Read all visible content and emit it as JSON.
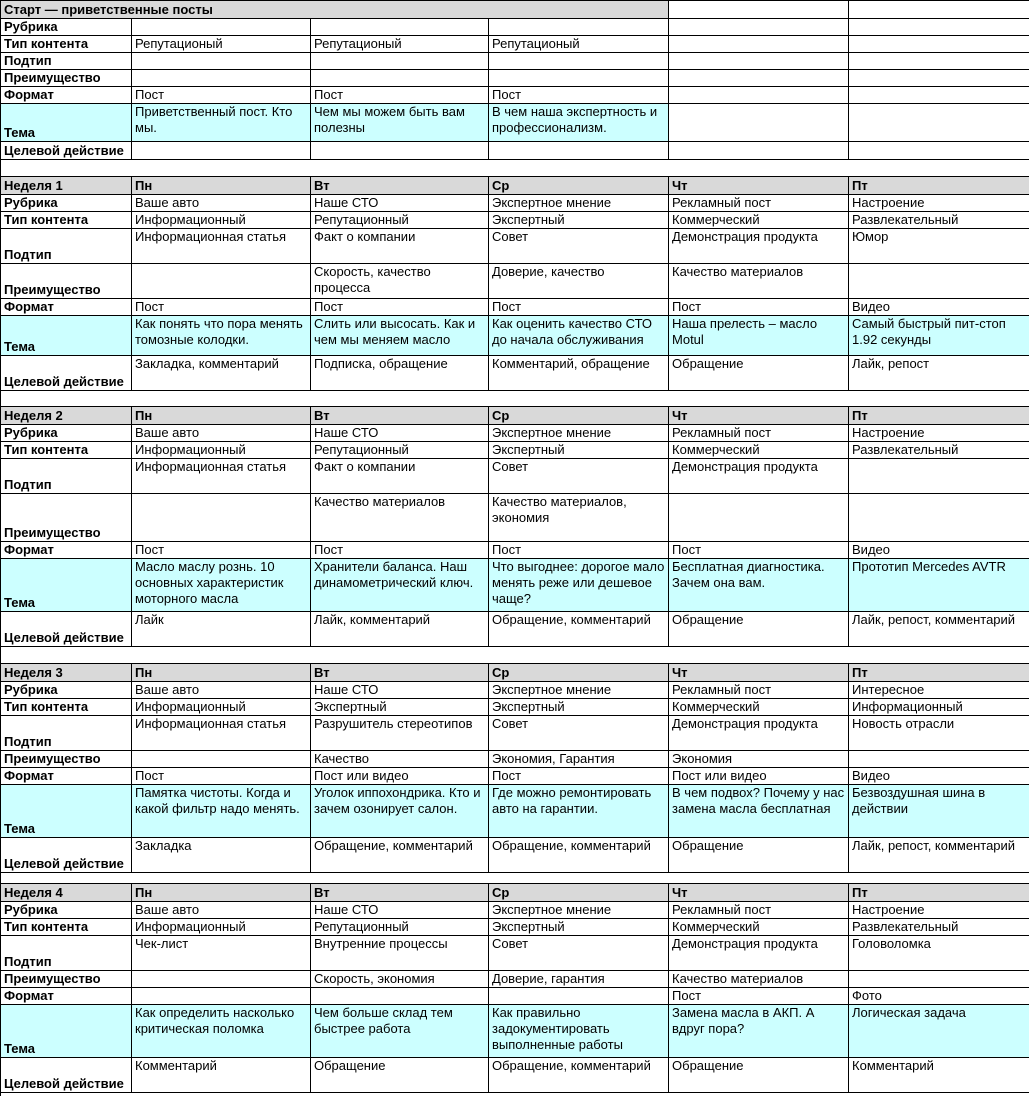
{
  "colors": {
    "section_header_bg": "#d9d9d9",
    "tema_row_bg": "#ccffff",
    "border": "#000000"
  },
  "row_labels": [
    "Рубрика",
    "Тип контента",
    "Подтип",
    "Преимущество",
    "Формат",
    "Тема",
    "Целевой действие"
  ],
  "day_headers": [
    "Пн",
    "Вт",
    "Ср",
    "Чт",
    "Пт"
  ],
  "sections": [
    {
      "key": "start",
      "title": "Старт — приветственные посты",
      "has_day_headers": false,
      "rows": [
        [
          "",
          "",
          "",
          "",
          ""
        ],
        [
          "Репутационый",
          "Репутационый",
          "Репутационый",
          "",
          ""
        ],
        [
          "",
          "",
          "",
          "",
          ""
        ],
        [
          "",
          "",
          "",
          "",
          ""
        ],
        [
          "Пост",
          "Пост",
          "Пост",
          "",
          ""
        ],
        [
          "Приветственный пост. Кто мы.",
          "Чем мы можем быть вам полезны",
          "В чем наша экспертность и профессионализм.",
          "",
          ""
        ],
        [
          "",
          "",
          "",
          "",
          ""
        ]
      ]
    },
    {
      "key": "week1",
      "title": "Неделя 1",
      "has_day_headers": true,
      "rows": [
        [
          "Ваше авто",
          "Наше СТО",
          "Экспертное мнение",
          "Рекламный пост",
          "Настроение"
        ],
        [
          "Информационный",
          "Репутационный",
          "Экспертный",
          "Коммерческий",
          "Развлекательный"
        ],
        [
          "Информационная статья",
          "Факт о компании",
          "Совет",
          "Демонстрация продукта",
          "Юмор"
        ],
        [
          "",
          "Скорость, качество процесса",
          "Доверие, качество",
          "Качество материалов",
          ""
        ],
        [
          "Пост",
          "Пост",
          "Пост",
          "Пост",
          "Видео"
        ],
        [
          "Как понять что пора менять томозные колодки.",
          "Слить или высосать. Как и чем мы меняем масло",
          "Как оценить качество СТО до начала обслуживания",
          "Наша прелесть – масло Motul",
          "Самый быстрый пит-стоп 1.92 секунды"
        ],
        [
          "Закладка, комментарий",
          "Подписка, обращение",
          "Комментарий, обращение",
          "Обращение",
          "Лайк, репост"
        ]
      ]
    },
    {
      "key": "week2",
      "title": "Неделя 2",
      "has_day_headers": true,
      "rows": [
        [
          "Ваше авто",
          "Наше СТО",
          "Экспертное мнение",
          "Рекламный пост",
          "Настроение"
        ],
        [
          "Информационный",
          "Репутационный",
          "Экспертный",
          "Коммерческий",
          "Развлекательный"
        ],
        [
          "Информационная статья",
          "Факт о компании",
          "Совет",
          "Демонстрация продукта",
          ""
        ],
        [
          "",
          "Качество материалов",
          "Качество материалов, экономия",
          "",
          ""
        ],
        [
          "Пост",
          "Пост",
          "Пост",
          "Пост",
          "Видео"
        ],
        [
          "Масло маслу рознь. 10 основных характеристик моторного масла",
          "Хранители баланса. Наш динамометрический ключ.",
          "Что выгоднее: дорогое мало менять реже или дешевое чаще?",
          "Бесплатная диагностика. Зачем она вам.",
          "Прототип Mercedes AVTR"
        ],
        [
          "Лайк",
          "Лайк, комментарий",
          "Обращение, комментарий",
          "Обращение",
          "Лайк, репост, комментарий"
        ]
      ]
    },
    {
      "key": "week3",
      "title": "Неделя 3",
      "has_day_headers": true,
      "rows": [
        [
          "Ваше авто",
          "Наше СТО",
          "Экспертное мнение",
          "Рекламный пост",
          "Интересное"
        ],
        [
          "Информационный",
          "Экспертный",
          "Экспертный",
          "Коммерческий",
          "Информационный"
        ],
        [
          "Информационная статья",
          "Разрушитель стереотипов",
          "Совет",
          "Демонстрация продукта",
          "Новость отрасли"
        ],
        [
          "",
          "Качество",
          "Экономия, Гарантия",
          "Экономия",
          ""
        ],
        [
          "Пост",
          "Пост или видео",
          "Пост",
          "Пост или видео",
          "Видео"
        ],
        [
          "Памятка чистоты. Когда и какой фильтр надо менять.",
          "Уголок иппохондрика. Кто и зачем озонирует салон.",
          "Где можно ремонтировать авто на гарантии.",
          "В чем подвох? Почему у нас замена масла бесплатная",
          "Безвоздушная шина в действии"
        ],
        [
          "Закладка",
          "Обращение, комментарий",
          "Обращение, комментарий",
          "Обращение",
          "Лайк, репост, комментарий"
        ]
      ]
    },
    {
      "key": "week4",
      "title": "Неделя 4",
      "has_day_headers": true,
      "rows": [
        [
          "Ваше авто",
          "Наше СТО",
          "Экспертное мнение",
          "Рекламный пост",
          "Настроение"
        ],
        [
          "Информационный",
          "Репутационный",
          "Экспертный",
          "Коммерческий",
          "Развлекательный"
        ],
        [
          "Чек-лист",
          "Внутренние процессы",
          "Совет",
          "Демонстрация продукта",
          "Головоломка"
        ],
        [
          "",
          "Скорость, экономия",
          "Доверие, гарантия",
          "Качество материалов",
          ""
        ],
        [
          "",
          "",
          "",
          "Пост",
          "Фото"
        ],
        [
          "Как определить насколько критическая поломка",
          "Чем больше склад тем быстрее работа",
          "Как правильно задокументировать выполненные работы",
          "Замена масла в АКП. А вдруг пора?",
          "Логическая задача"
        ],
        [
          "Комментарий",
          "Обращение",
          "Обращение, комментарий",
          "Обращение",
          "Комментарий"
        ]
      ]
    }
  ]
}
